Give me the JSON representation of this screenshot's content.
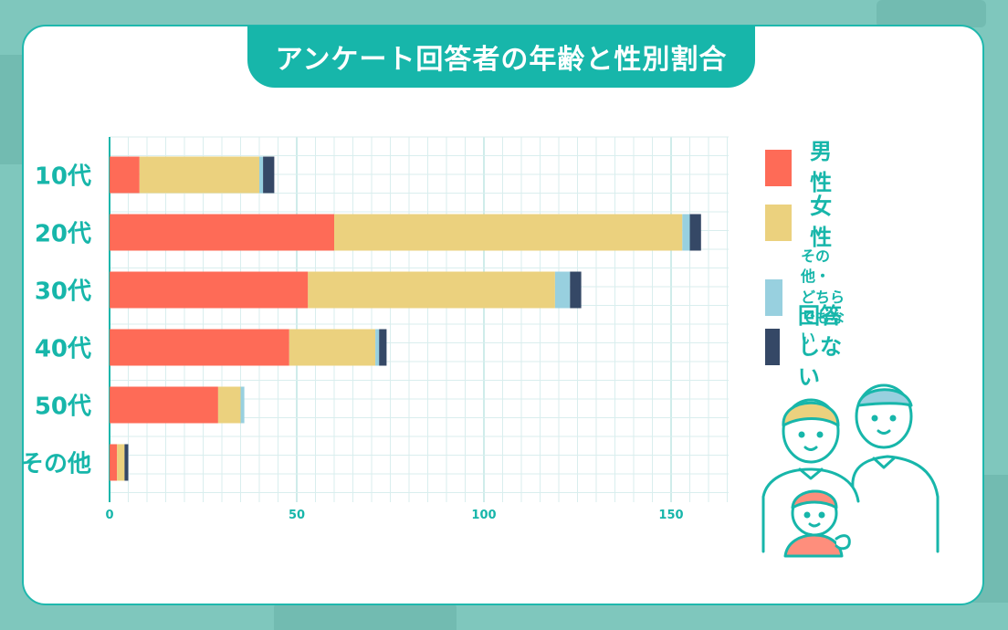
{
  "title": "アンケート回答者の年齢と性別割合",
  "colors": {
    "male": "#fe6b57",
    "female": "#ebd17e",
    "other": "#98d0df",
    "no_answer": "#354866",
    "teal": "#17b6aa",
    "grid": "#d9eeee"
  },
  "chart_data": {
    "type": "bar",
    "orientation": "horizontal",
    "stacked": true,
    "categories": [
      "10代",
      "20代",
      "30代",
      "40代",
      "50代",
      "その他"
    ],
    "series": [
      {
        "name": "男性",
        "values": [
          8,
          60,
          53,
          48,
          29,
          2
        ]
      },
      {
        "name": "女性",
        "values": [
          32,
          93,
          66,
          23,
          6,
          2
        ]
      },
      {
        "name": "その他・どちらでもない",
        "values": [
          1,
          2,
          4,
          1,
          1,
          0
        ]
      },
      {
        "name": "回答しない",
        "values": [
          3,
          3,
          3,
          2,
          0,
          1
        ]
      }
    ],
    "xticks": [
      0,
      50,
      100,
      150
    ],
    "xlim": [
      0,
      165
    ],
    "grid": true,
    "legend_position": "right"
  },
  "legend": [
    {
      "label": "男性",
      "color_key": "male"
    },
    {
      "label": "女性",
      "color_key": "female"
    },
    {
      "label": "その他・\nどちらでもない",
      "color_key": "other"
    },
    {
      "label": "回答しない",
      "color_key": "no_answer"
    }
  ],
  "illustration": {
    "icon": "family-icon"
  }
}
